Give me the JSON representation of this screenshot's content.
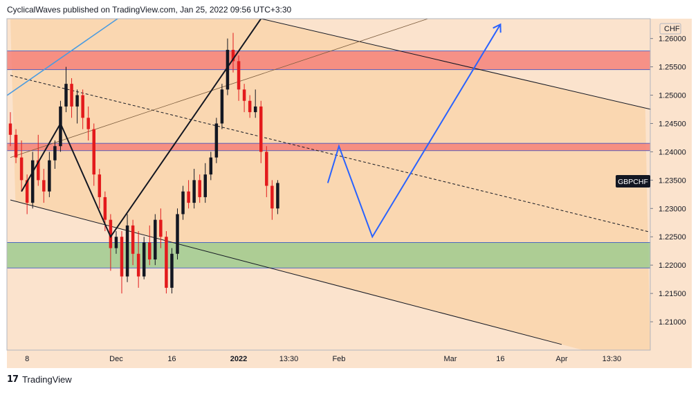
{
  "header": {
    "publisher_line": "CyclicalWaves published on TradingView.com, Jan 25, 2022 09:56 UTC+3:30"
  },
  "branding": {
    "logo_text": "17",
    "name": "TradingView"
  },
  "colors": {
    "background_light": "#fbe3cd",
    "background_band": "#fad7b1",
    "candle_up": "#131722",
    "candle_down": "#e31a1c",
    "resistance_zone": "#f4827a",
    "support_zone": "#9fcb8f",
    "projection_line": "#2962ff",
    "trendline": "#131722",
    "blue_line": "#4a9be0"
  },
  "chart_data": {
    "type": "candlestick",
    "symbol": "GBPCHF",
    "currency": "CHF",
    "y_axis": {
      "range": [
        1.205,
        1.2635
      ],
      "ticks": [
        "1.26000",
        "1.25500",
        "1.25000",
        "1.24500",
        "1.24000",
        "1.23500",
        "1.23000",
        "1.22500",
        "1.22000",
        "1.21500",
        "1.21000"
      ]
    },
    "x_axis": {
      "ticks": [
        {
          "label": "8",
          "bar": 3
        },
        {
          "label": "Dec",
          "bar": 19
        },
        {
          "label": "16",
          "bar": 29
        },
        {
          "label": "2022",
          "bar": 41
        },
        {
          "label": "13:30",
          "bar": 50
        },
        {
          "label": "Feb",
          "bar": 59
        },
        {
          "label": "Mar",
          "bar": 79
        },
        {
          "label": "16",
          "bar": 88
        },
        {
          "label": "Apr",
          "bar": 99
        },
        {
          "label": "13:30",
          "bar": 108
        }
      ]
    },
    "zones": [
      {
        "name": "resistance",
        "low": 1.2545,
        "high": 1.2578,
        "color": "#f4827a"
      },
      {
        "name": "resistance",
        "low": 1.2402,
        "high": 1.2415,
        "color": "#f4827a"
      },
      {
        "name": "support",
        "low": 1.2195,
        "high": 1.224,
        "color": "#9fcb8f"
      }
    ],
    "channel_lines": [
      {
        "from": [
          0,
          1.2315
        ],
        "to": [
          99,
          1.206
        ]
      },
      {
        "from": [
          45,
          1.2635
        ],
        "to": [
          115,
          1.2475
        ]
      },
      {
        "from": [
          0,
          1.2535
        ],
        "to": [
          115,
          1.2258
        ],
        "dashed": true
      },
      {
        "from": [
          0,
          1.239
        ],
        "to": [
          75,
          1.2635
        ]
      }
    ],
    "candles": [
      [
        1.245,
        1.247,
        1.241,
        1.243
      ],
      [
        1.243,
        1.244,
        1.238,
        1.239
      ],
      [
        1.239,
        1.242,
        1.233,
        1.235
      ],
      [
        1.235,
        1.236,
        1.229,
        1.231
      ],
      [
        1.231,
        1.24,
        1.23,
        1.2385
      ],
      [
        1.2385,
        1.243,
        1.234,
        1.235
      ],
      [
        1.235,
        1.237,
        1.231,
        1.233
      ],
      [
        1.233,
        1.24,
        1.232,
        1.2385
      ],
      [
        1.2385,
        1.242,
        1.237,
        1.241
      ],
      [
        1.241,
        1.249,
        1.24,
        1.248
      ],
      [
        1.248,
        1.255,
        1.247,
        1.252
      ],
      [
        1.252,
        1.253,
        1.246,
        1.248
      ],
      [
        1.248,
        1.251,
        1.245,
        1.25
      ],
      [
        1.25,
        1.251,
        1.244,
        1.246
      ],
      [
        1.246,
        1.248,
        1.242,
        1.244
      ],
      [
        1.244,
        1.245,
        1.234,
        1.236
      ],
      [
        1.236,
        1.237,
        1.23,
        1.232
      ],
      [
        1.232,
        1.233,
        1.226,
        1.228
      ],
      [
        1.228,
        1.229,
        1.219,
        1.223
      ],
      [
        1.223,
        1.226,
        1.222,
        1.225
      ],
      [
        1.225,
        1.226,
        1.215,
        1.218
      ],
      [
        1.218,
        1.229,
        1.217,
        1.227
      ],
      [
        1.227,
        1.228,
        1.22,
        1.222
      ],
      [
        1.222,
        1.226,
        1.216,
        1.218
      ],
      [
        1.218,
        1.225,
        1.2175,
        1.224
      ],
      [
        1.224,
        1.227,
        1.22,
        1.221
      ],
      [
        1.221,
        1.229,
        1.22,
        1.228
      ],
      [
        1.228,
        1.23,
        1.223,
        1.225
      ],
      [
        1.225,
        1.226,
        1.215,
        1.216
      ],
      [
        1.216,
        1.223,
        1.215,
        1.222
      ],
      [
        1.222,
        1.23,
        1.221,
        1.229
      ],
      [
        1.229,
        1.234,
        1.228,
        1.233
      ],
      [
        1.233,
        1.235,
        1.23,
        1.231
      ],
      [
        1.231,
        1.237,
        1.23,
        1.235
      ],
      [
        1.235,
        1.236,
        1.231,
        1.232
      ],
      [
        1.232,
        1.238,
        1.231,
        1.236
      ],
      [
        1.236,
        1.24,
        1.235,
        1.239
      ],
      [
        1.239,
        1.246,
        1.238,
        1.245
      ],
      [
        1.245,
        1.252,
        1.244,
        1.251
      ],
      [
        1.251,
        1.26,
        1.25,
        1.258
      ],
      [
        1.258,
        1.261,
        1.254,
        1.256
      ],
      [
        1.256,
        1.257,
        1.249,
        1.251
      ],
      [
        1.251,
        1.252,
        1.247,
        1.249
      ],
      [
        1.249,
        1.25,
        1.246,
        1.247
      ],
      [
        1.247,
        1.251,
        1.246,
        1.248
      ],
      [
        1.248,
        1.249,
        1.238,
        1.24
      ],
      [
        1.24,
        1.241,
        1.232,
        1.234
      ],
      [
        1.234,
        1.235,
        1.228,
        1.23
      ],
      [
        1.23,
        1.235,
        1.229,
        1.2345
      ]
    ],
    "candle_bar_start": 0,
    "projection_path": [
      {
        "bar": 57,
        "price": 1.2345
      },
      {
        "bar": 59,
        "price": 1.241
      },
      {
        "bar": 65,
        "price": 1.225
      },
      {
        "bar": 88,
        "price": 1.2625
      }
    ],
    "pattern_path": [
      {
        "bar": 2,
        "price": 1.233
      },
      {
        "bar": 9,
        "price": 1.245
      },
      {
        "bar": 18,
        "price": 1.225
      },
      {
        "bar": 45,
        "price": 1.2635
      }
    ],
    "last_price_label": "GBPCHF",
    "last_price": 1.2348
  }
}
